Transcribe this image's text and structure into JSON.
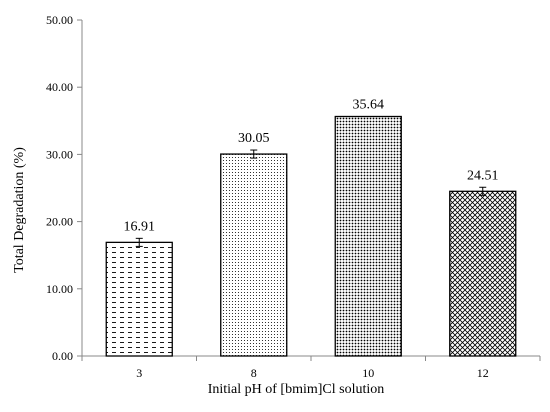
{
  "chart_data": {
    "type": "bar",
    "title": "",
    "xlabel": "Initial pH of [bmim]Cl solution",
    "ylabel": "Total Degradation (%)",
    "categories": [
      "3",
      "8",
      "10",
      "12"
    ],
    "values": [
      16.91,
      30.05,
      35.64,
      24.51
    ],
    "value_labels": [
      "16.91",
      "30.05",
      "35.64",
      "24.51"
    ],
    "error": [
      0.6,
      0.6,
      0.0,
      0.6
    ],
    "ylim": [
      0,
      50
    ],
    "yticks": [
      0,
      10,
      20,
      30,
      40,
      50
    ],
    "ytick_labels": [
      "0.00",
      "10.00",
      "20.00",
      "30.00",
      "40.00",
      "50.00"
    ],
    "grid": false,
    "legend": "none",
    "bar_patterns": [
      "horizontal-dashes",
      "fine-dots",
      "dense-dots",
      "cross-hatch"
    ],
    "colors": {
      "bar_fill": "#ffffff",
      "bar_stroke": "#000000",
      "axis": "#888888"
    }
  }
}
